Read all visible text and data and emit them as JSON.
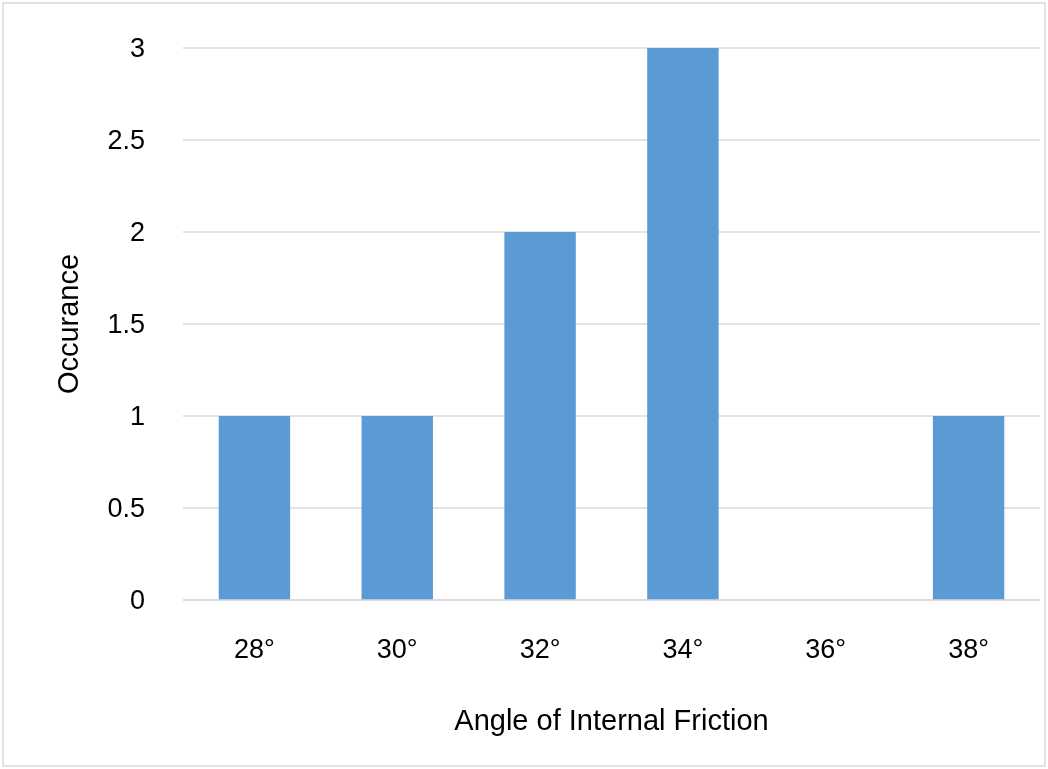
{
  "chart_data": {
    "type": "bar",
    "xlabel": "Angle of Internal Friction",
    "ylabel": "Occurance",
    "categories": [
      "28°",
      "30°",
      "32°",
      "34°",
      "36°",
      "38°"
    ],
    "values": [
      1,
      1,
      2,
      3,
      0,
      1
    ],
    "color": "#5b9bd5",
    "ylim": [
      0,
      3
    ],
    "yticks": [
      0,
      {
        "value": 0.5,
        "label": "0.5"
      },
      1,
      {
        "value": 1.5,
        "label": "1.5"
      },
      2,
      {
        "value": 2.5,
        "label": "2.5"
      },
      3
    ],
    "grid": "y"
  }
}
